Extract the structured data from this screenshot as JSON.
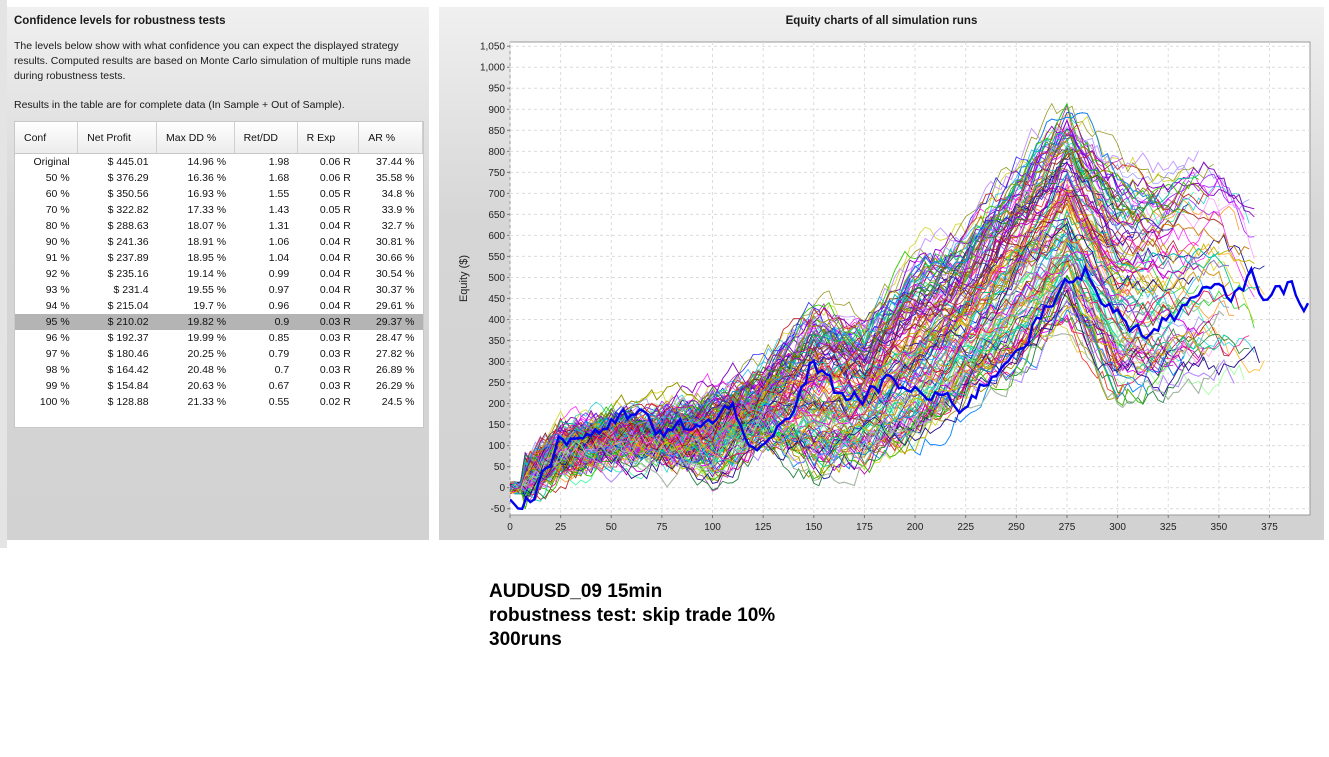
{
  "confidence_panel": {
    "title": "Confidence levels for robustness tests",
    "description": "The levels below show with what confidence you can expect the displayed strategy results. Computed results are based on Monte Carlo simulation of multiple runs made during robustness tests.",
    "note": "Results in the table are for complete data (In Sample + Out of Sample).",
    "columns": [
      "Conf",
      "Net Profit",
      "Max DD %",
      "Ret/DD",
      "R Exp",
      "AR %"
    ],
    "selected_row": 10,
    "rows": [
      [
        "Original",
        "$ 445.01",
        "14.96 %",
        "1.98",
        "0.06 R",
        "37.44 %"
      ],
      [
        "50 %",
        "$ 376.29",
        "16.36 %",
        "1.68",
        "0.06 R",
        "35.58 %"
      ],
      [
        "60 %",
        "$ 350.56",
        "16.93 %",
        "1.55",
        "0.05 R",
        "34.8 %"
      ],
      [
        "70 %",
        "$ 322.82",
        "17.33 %",
        "1.43",
        "0.05 R",
        "33.9 %"
      ],
      [
        "80 %",
        "$ 288.63",
        "18.07 %",
        "1.31",
        "0.04 R",
        "32.7 %"
      ],
      [
        "90 %",
        "$ 241.36",
        "18.91 %",
        "1.06",
        "0.04 R",
        "30.81 %"
      ],
      [
        "91 %",
        "$ 237.89",
        "18.95 %",
        "1.04",
        "0.04 R",
        "30.66 %"
      ],
      [
        "92 %",
        "$ 235.16",
        "19.14 %",
        "0.99",
        "0.04 R",
        "30.54 %"
      ],
      [
        "93 %",
        "$ 231.4",
        "19.55 %",
        "0.97",
        "0.04 R",
        "30.37 %"
      ],
      [
        "94 %",
        "$ 215.04",
        "19.7 %",
        "0.96",
        "0.04 R",
        "29.61 %"
      ],
      [
        "95 %",
        "$ 210.02",
        "19.82 %",
        "0.9",
        "0.03 R",
        "29.37 %"
      ],
      [
        "96 %",
        "$ 192.37",
        "19.99 %",
        "0.85",
        "0.03 R",
        "28.47 %"
      ],
      [
        "97 %",
        "$ 180.46",
        "20.25 %",
        "0.79",
        "0.03 R",
        "27.82 %"
      ],
      [
        "98 %",
        "$ 164.42",
        "20.48 %",
        "0.7",
        "0.03 R",
        "26.89 %"
      ],
      [
        "99 %",
        "$ 154.84",
        "20.63 %",
        "0.67",
        "0.03 R",
        "26.29 %"
      ],
      [
        "100 %",
        "$ 128.88",
        "21.33 %",
        "0.55",
        "0.02 R",
        "24.5 %"
      ]
    ]
  },
  "chart_data": {
    "type": "line",
    "title": "Equity charts of all simulation runs",
    "xlabel": "",
    "ylabel": "Equity ($)",
    "xlim": [
      0,
      395
    ],
    "ylim": [
      -65,
      1060
    ],
    "xticks": [
      "0",
      "25",
      "50",
      "75",
      "100",
      "125",
      "150",
      "175",
      "200",
      "225",
      "250",
      "275",
      "300",
      "325",
      "350",
      "375"
    ],
    "yticks": [
      "-50",
      "0",
      "50",
      "100",
      "150",
      "200",
      "250",
      "300",
      "350",
      "400",
      "450",
      "500",
      "550",
      "600",
      "650",
      "700",
      "750",
      "800",
      "850",
      "900",
      "950",
      "1,000",
      "1,050"
    ],
    "grid": true,
    "simulation_runs_shown": 300,
    "simulation_colors": [
      "#ff0000",
      "#00cc00",
      "#0000ff",
      "#ff00ff",
      "#00cccc",
      "#cccc00",
      "#ff8800",
      "#8800ff",
      "#00ff88",
      "#ff0088",
      "#008800",
      "#880000",
      "#000088",
      "#888800",
      "#ff88ff",
      "#88ff88",
      "#8888ff",
      "#ffaa00",
      "#00aaff",
      "#aa00aa"
    ],
    "original_series": {
      "name": "",
      "color": "#0000ee",
      "x": [
        0,
        10,
        25,
        50,
        65,
        75,
        90,
        100,
        110,
        125,
        140,
        150,
        160,
        175,
        185,
        200,
        210,
        225,
        240,
        255,
        270,
        285,
        300,
        315,
        330,
        345,
        360,
        365,
        375,
        385,
        395
      ],
      "values": [
        -25,
        -15,
        110,
        150,
        170,
        120,
        150,
        150,
        185,
        80,
        170,
        305,
        230,
        210,
        250,
        230,
        210,
        200,
        280,
        370,
        450,
        520,
        410,
        360,
        420,
        460,
        455,
        510,
        450,
        480,
        440
      ]
    },
    "envelope": {
      "x": [
        0,
        25,
        50,
        75,
        100,
        125,
        150,
        175,
        200,
        225,
        250,
        275,
        300,
        325,
        350,
        375
      ],
      "upper": [
        20,
        140,
        175,
        180,
        255,
        300,
        520,
        450,
        650,
        700,
        880,
        1010,
        900,
        870,
        920,
        720
      ],
      "lower": [
        -20,
        40,
        65,
        70,
        0,
        90,
        -40,
        0,
        0,
        120,
        180,
        300,
        100,
        130,
        140,
        140
      ]
    }
  },
  "caption": {
    "line1": "AUDUSD_09 15min",
    "line2": "robustness test: skip trade 10%",
    "line3": "300runs"
  }
}
